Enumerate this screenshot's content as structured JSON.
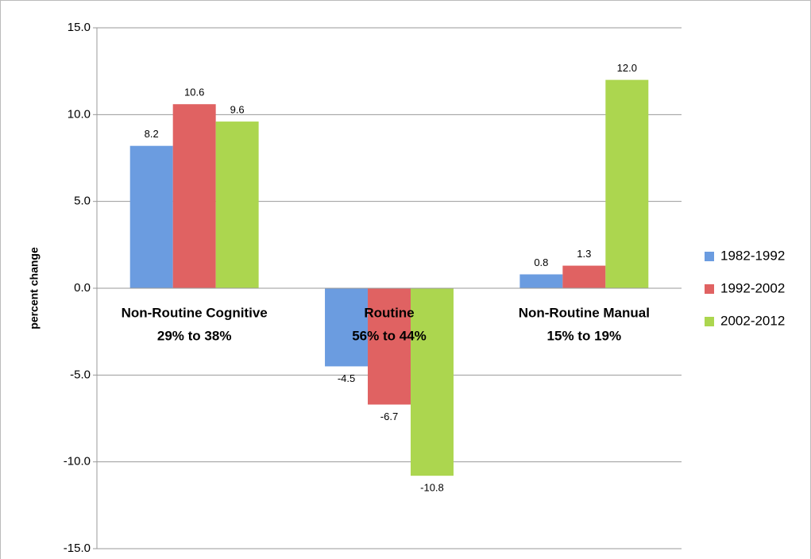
{
  "chart_data": {
    "type": "bar",
    "y_label": "percent change",
    "categories": [
      "Non-Routine Cognitive",
      "Routine",
      "Non-Routine Manual"
    ],
    "category_notes": [
      "29% to 38%",
      "56% to 44%",
      "15% to 19%"
    ],
    "series": [
      {
        "name": "1982-1992",
        "color": "#6b9ce0",
        "values": [
          8.2,
          -4.5,
          0.8
        ],
        "value_labels": [
          "8.2",
          "-4.5",
          "0.8"
        ]
      },
      {
        "name": "1992-2002",
        "color": "#e06262",
        "values": [
          10.6,
          -6.7,
          1.3
        ],
        "value_labels": [
          "10.6",
          "-6.7",
          "1.3"
        ]
      },
      {
        "name": "2002-2012",
        "color": "#acd64f",
        "values": [
          9.6,
          -10.8,
          12.0
        ],
        "value_labels": [
          "9.6",
          "-10.8",
          "12.0"
        ]
      }
    ],
    "ylim": [
      -15,
      15
    ],
    "yticks": [
      {
        "value": -15,
        "label": "-15.0"
      },
      {
        "value": -10,
        "label": "-10.0"
      },
      {
        "value": -5,
        "label": "-5.0"
      },
      {
        "value": 0,
        "label": "0.0"
      },
      {
        "value": 5,
        "label": "5.0"
      },
      {
        "value": 10,
        "label": "10.0"
      },
      {
        "value": 15,
        "label": "15.0"
      }
    ],
    "grid": true,
    "legend": "right"
  }
}
